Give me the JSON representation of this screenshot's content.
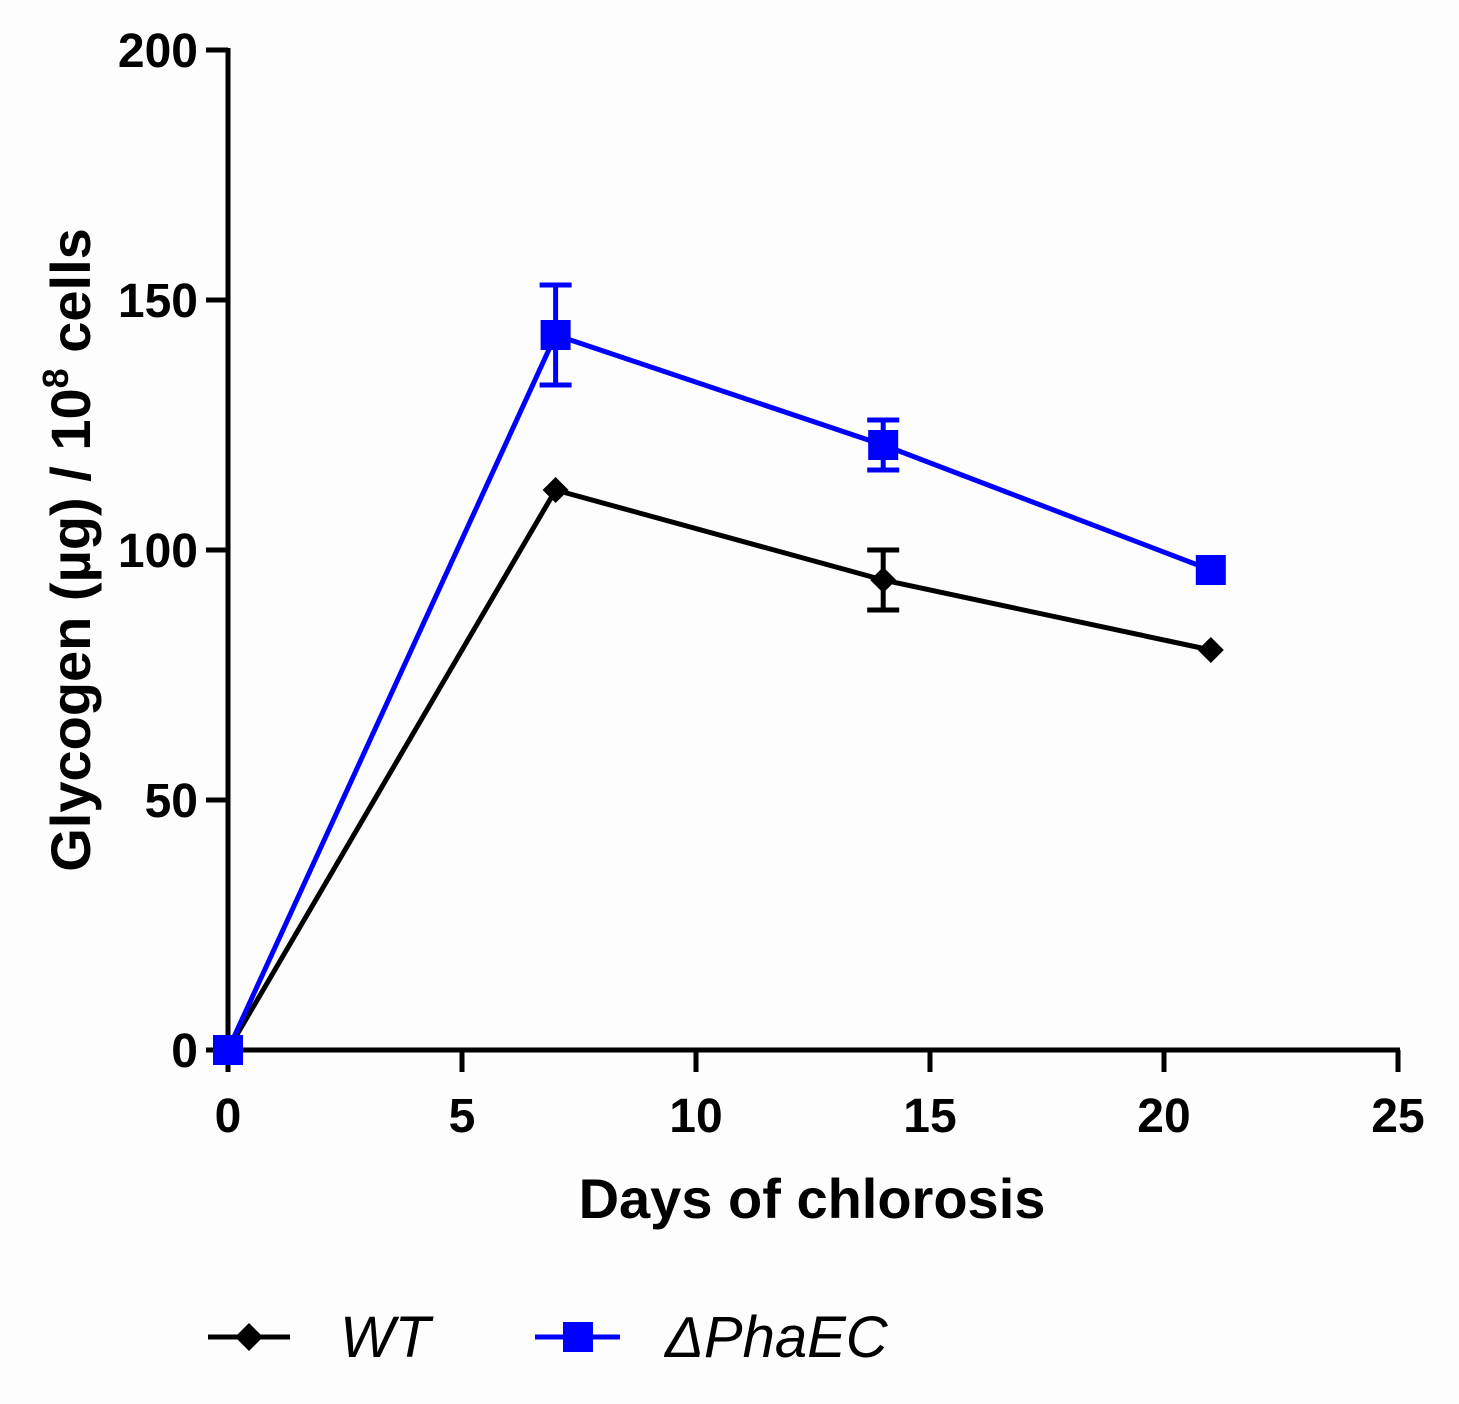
{
  "chart_data": {
    "type": "line",
    "title": "",
    "xlabel": "Days of chlorosis",
    "ylabel": {
      "main": "Glycogen (µg) / 10",
      "superscript": "8",
      "suffix": " cells"
    },
    "xlim": [
      0,
      25
    ],
    "ylim": [
      0,
      200
    ],
    "xticks": [
      "0",
      "5",
      "10",
      "15",
      "20",
      "25"
    ],
    "yticks": [
      "0",
      "50",
      "100",
      "150",
      "200"
    ],
    "legend_position": "bottom",
    "grid": false,
    "series": [
      {
        "name": "WT",
        "color": "#000000",
        "marker": "diamond",
        "x": [
          0,
          7,
          14,
          21
        ],
        "y": [
          0,
          112,
          94,
          80
        ],
        "error": [
          0,
          0,
          6,
          0
        ]
      },
      {
        "name": "ΔPhaEC",
        "color": "#0000ff",
        "marker": "square",
        "x": [
          0,
          7,
          14,
          21
        ],
        "y": [
          0,
          143,
          121,
          96
        ],
        "error": [
          0,
          10,
          5,
          0
        ]
      }
    ]
  }
}
